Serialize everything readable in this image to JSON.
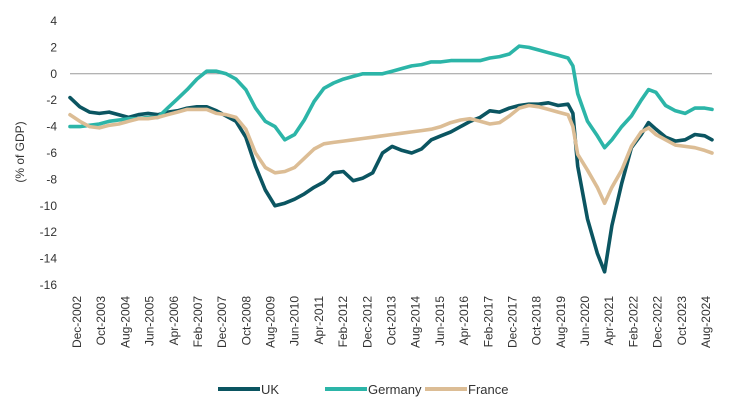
{
  "chart_data": {
    "type": "line",
    "title": "",
    "ylabel": "(% of GDP)",
    "xlabel": "",
    "ylim": [
      -16,
      4
    ],
    "yticks": [
      4,
      2,
      0,
      -2,
      -4,
      -6,
      -8,
      -10,
      -12,
      -14,
      -16
    ],
    "grid": false,
    "legend_position": "bottom-center",
    "x_start": "2002-12",
    "x_end": "2024-11",
    "xtick_labels": [
      "Dec-2002",
      "Oct-2003",
      "Aug-2004",
      "Jun-2005",
      "Apr-2006",
      "Feb-2007",
      "Dec-2007",
      "Oct-2008",
      "Aug-2009",
      "Jun-2010",
      "Apr-2011",
      "Feb-2012",
      "Dec-2012",
      "Oct-2013",
      "Aug-2014",
      "Jun-2015",
      "Apr-2016",
      "Feb-2017",
      "Dec-2017",
      "Oct-2018",
      "Aug-2019",
      "Jun-2020",
      "Apr-2021",
      "Feb-2022",
      "Dec-2022",
      "Oct-2023",
      "Aug-2024"
    ],
    "series": [
      {
        "name": "UK",
        "color": "#0b5561",
        "points": [
          [
            "2002-12",
            -1.8
          ],
          [
            "2003-04",
            -2.5
          ],
          [
            "2003-08",
            -2.9
          ],
          [
            "2003-12",
            -3.0
          ],
          [
            "2004-04",
            -2.9
          ],
          [
            "2004-08",
            -3.1
          ],
          [
            "2004-12",
            -3.3
          ],
          [
            "2005-04",
            -3.1
          ],
          [
            "2005-08",
            -3.0
          ],
          [
            "2005-12",
            -3.1
          ],
          [
            "2006-04",
            -2.9
          ],
          [
            "2006-08",
            -2.8
          ],
          [
            "2006-12",
            -2.6
          ],
          [
            "2007-04",
            -2.5
          ],
          [
            "2007-08",
            -2.5
          ],
          [
            "2007-12",
            -2.8
          ],
          [
            "2008-04",
            -3.2
          ],
          [
            "2008-08",
            -3.6
          ],
          [
            "2008-12",
            -4.8
          ],
          [
            "2009-04",
            -7.0
          ],
          [
            "2009-08",
            -8.8
          ],
          [
            "2009-12",
            -10.0
          ],
          [
            "2010-04",
            -9.8
          ],
          [
            "2010-08",
            -9.5
          ],
          [
            "2010-12",
            -9.1
          ],
          [
            "2011-04",
            -8.6
          ],
          [
            "2011-08",
            -8.2
          ],
          [
            "2011-12",
            -7.5
          ],
          [
            "2012-04",
            -7.4
          ],
          [
            "2012-08",
            -8.1
          ],
          [
            "2012-12",
            -7.9
          ],
          [
            "2013-04",
            -7.5
          ],
          [
            "2013-08",
            -6.0
          ],
          [
            "2013-12",
            -5.5
          ],
          [
            "2014-04",
            -5.8
          ],
          [
            "2014-08",
            -6.0
          ],
          [
            "2014-12",
            -5.7
          ],
          [
            "2015-04",
            -5.0
          ],
          [
            "2015-08",
            -4.7
          ],
          [
            "2015-12",
            -4.4
          ],
          [
            "2016-04",
            -4.0
          ],
          [
            "2016-08",
            -3.6
          ],
          [
            "2016-12",
            -3.3
          ],
          [
            "2017-04",
            -2.8
          ],
          [
            "2017-08",
            -2.9
          ],
          [
            "2017-12",
            -2.6
          ],
          [
            "2018-04",
            -2.4
          ],
          [
            "2018-08",
            -2.3
          ],
          [
            "2018-12",
            -2.3
          ],
          [
            "2019-04",
            -2.2
          ],
          [
            "2019-08",
            -2.4
          ],
          [
            "2019-12",
            -2.3
          ],
          [
            "2020-02",
            -3.0
          ],
          [
            "2020-04",
            -7.0
          ],
          [
            "2020-08",
            -11.0
          ],
          [
            "2020-12",
            -13.6
          ],
          [
            "2021-03",
            -15.0
          ],
          [
            "2021-06",
            -11.5
          ],
          [
            "2021-10",
            -8.3
          ],
          [
            "2022-02",
            -5.6
          ],
          [
            "2022-06",
            -4.6
          ],
          [
            "2022-09",
            -3.7
          ],
          [
            "2022-12",
            -4.2
          ],
          [
            "2023-04",
            -4.8
          ],
          [
            "2023-08",
            -5.1
          ],
          [
            "2023-12",
            -5.0
          ],
          [
            "2024-04",
            -4.6
          ],
          [
            "2024-08",
            -4.7
          ],
          [
            "2024-11",
            -5.0
          ]
        ]
      },
      {
        "name": "Germany",
        "color": "#2cb5a8",
        "points": [
          [
            "2002-12",
            -4.0
          ],
          [
            "2003-04",
            -4.0
          ],
          [
            "2003-08",
            -3.9
          ],
          [
            "2003-12",
            -3.8
          ],
          [
            "2004-04",
            -3.6
          ],
          [
            "2004-08",
            -3.5
          ],
          [
            "2004-12",
            -3.4
          ],
          [
            "2005-04",
            -3.4
          ],
          [
            "2005-08",
            -3.3
          ],
          [
            "2005-12",
            -3.3
          ],
          [
            "2006-04",
            -2.6
          ],
          [
            "2006-08",
            -1.9
          ],
          [
            "2006-12",
            -1.2
          ],
          [
            "2007-04",
            -0.4
          ],
          [
            "2007-08",
            0.2
          ],
          [
            "2007-12",
            0.2
          ],
          [
            "2008-04",
            0.0
          ],
          [
            "2008-08",
            -0.4
          ],
          [
            "2008-12",
            -1.2
          ],
          [
            "2009-04",
            -2.6
          ],
          [
            "2009-08",
            -3.6
          ],
          [
            "2009-12",
            -4.0
          ],
          [
            "2010-04",
            -5.0
          ],
          [
            "2010-08",
            -4.6
          ],
          [
            "2010-12",
            -3.5
          ],
          [
            "2011-04",
            -2.1
          ],
          [
            "2011-08",
            -1.1
          ],
          [
            "2011-12",
            -0.7
          ],
          [
            "2012-04",
            -0.4
          ],
          [
            "2012-08",
            -0.2
          ],
          [
            "2012-12",
            0.0
          ],
          [
            "2013-04",
            0.0
          ],
          [
            "2013-08",
            0.0
          ],
          [
            "2013-12",
            0.2
          ],
          [
            "2014-04",
            0.4
          ],
          [
            "2014-08",
            0.6
          ],
          [
            "2014-12",
            0.7
          ],
          [
            "2015-04",
            0.9
          ],
          [
            "2015-08",
            0.9
          ],
          [
            "2015-12",
            1.0
          ],
          [
            "2016-04",
            1.0
          ],
          [
            "2016-08",
            1.0
          ],
          [
            "2016-12",
            1.0
          ],
          [
            "2017-04",
            1.2
          ],
          [
            "2017-08",
            1.3
          ],
          [
            "2017-12",
            1.5
          ],
          [
            "2018-04",
            2.1
          ],
          [
            "2018-08",
            2.0
          ],
          [
            "2018-12",
            1.8
          ],
          [
            "2019-04",
            1.6
          ],
          [
            "2019-08",
            1.4
          ],
          [
            "2019-12",
            1.2
          ],
          [
            "2020-02",
            0.6
          ],
          [
            "2020-04",
            -1.5
          ],
          [
            "2020-08",
            -3.6
          ],
          [
            "2020-12",
            -4.7
          ],
          [
            "2021-03",
            -5.6
          ],
          [
            "2021-06",
            -5.0
          ],
          [
            "2021-10",
            -4.0
          ],
          [
            "2022-02",
            -3.2
          ],
          [
            "2022-06",
            -2.0
          ],
          [
            "2022-09",
            -1.2
          ],
          [
            "2022-12",
            -1.4
          ],
          [
            "2023-04",
            -2.4
          ],
          [
            "2023-08",
            -2.8
          ],
          [
            "2023-12",
            -3.0
          ],
          [
            "2024-04",
            -2.6
          ],
          [
            "2024-08",
            -2.6
          ],
          [
            "2024-11",
            -2.7
          ]
        ]
      },
      {
        "name": "France",
        "color": "#dcbd95",
        "points": [
          [
            "2002-12",
            -3.1
          ],
          [
            "2003-04",
            -3.6
          ],
          [
            "2003-08",
            -4.0
          ],
          [
            "2003-12",
            -4.1
          ],
          [
            "2004-04",
            -3.9
          ],
          [
            "2004-08",
            -3.8
          ],
          [
            "2004-12",
            -3.6
          ],
          [
            "2005-04",
            -3.4
          ],
          [
            "2005-08",
            -3.4
          ],
          [
            "2005-12",
            -3.3
          ],
          [
            "2006-04",
            -3.1
          ],
          [
            "2006-08",
            -2.9
          ],
          [
            "2006-12",
            -2.7
          ],
          [
            "2007-04",
            -2.7
          ],
          [
            "2007-08",
            -2.7
          ],
          [
            "2007-12",
            -3.0
          ],
          [
            "2008-04",
            -3.1
          ],
          [
            "2008-08",
            -3.3
          ],
          [
            "2008-12",
            -4.2
          ],
          [
            "2009-04",
            -6.0
          ],
          [
            "2009-08",
            -7.1
          ],
          [
            "2009-12",
            -7.5
          ],
          [
            "2010-04",
            -7.4
          ],
          [
            "2010-08",
            -7.1
          ],
          [
            "2010-12",
            -6.4
          ],
          [
            "2011-04",
            -5.7
          ],
          [
            "2011-08",
            -5.3
          ],
          [
            "2011-12",
            -5.2
          ],
          [
            "2012-04",
            -5.1
          ],
          [
            "2012-08",
            -5.0
          ],
          [
            "2012-12",
            -4.9
          ],
          [
            "2013-04",
            -4.8
          ],
          [
            "2013-08",
            -4.7
          ],
          [
            "2013-12",
            -4.6
          ],
          [
            "2014-04",
            -4.5
          ],
          [
            "2014-08",
            -4.4
          ],
          [
            "2014-12",
            -4.3
          ],
          [
            "2015-04",
            -4.2
          ],
          [
            "2015-08",
            -4.0
          ],
          [
            "2015-12",
            -3.7
          ],
          [
            "2016-04",
            -3.5
          ],
          [
            "2016-08",
            -3.4
          ],
          [
            "2016-12",
            -3.6
          ],
          [
            "2017-04",
            -3.8
          ],
          [
            "2017-08",
            -3.7
          ],
          [
            "2017-12",
            -3.2
          ],
          [
            "2018-04",
            -2.6
          ],
          [
            "2018-08",
            -2.4
          ],
          [
            "2018-12",
            -2.5
          ],
          [
            "2019-04",
            -2.7
          ],
          [
            "2019-08",
            -2.9
          ],
          [
            "2019-12",
            -3.1
          ],
          [
            "2020-02",
            -4.0
          ],
          [
            "2020-04",
            -6.1
          ],
          [
            "2020-08",
            -7.3
          ],
          [
            "2020-12",
            -8.6
          ],
          [
            "2021-03",
            -9.8
          ],
          [
            "2021-06",
            -8.6
          ],
          [
            "2021-10",
            -7.3
          ],
          [
            "2022-02",
            -5.5
          ],
          [
            "2022-06",
            -4.4
          ],
          [
            "2022-09",
            -4.1
          ],
          [
            "2022-12",
            -4.6
          ],
          [
            "2023-04",
            -5.0
          ],
          [
            "2023-08",
            -5.4
          ],
          [
            "2023-12",
            -5.5
          ],
          [
            "2024-04",
            -5.6
          ],
          [
            "2024-08",
            -5.8
          ],
          [
            "2024-11",
            -6.0
          ]
        ]
      }
    ]
  }
}
